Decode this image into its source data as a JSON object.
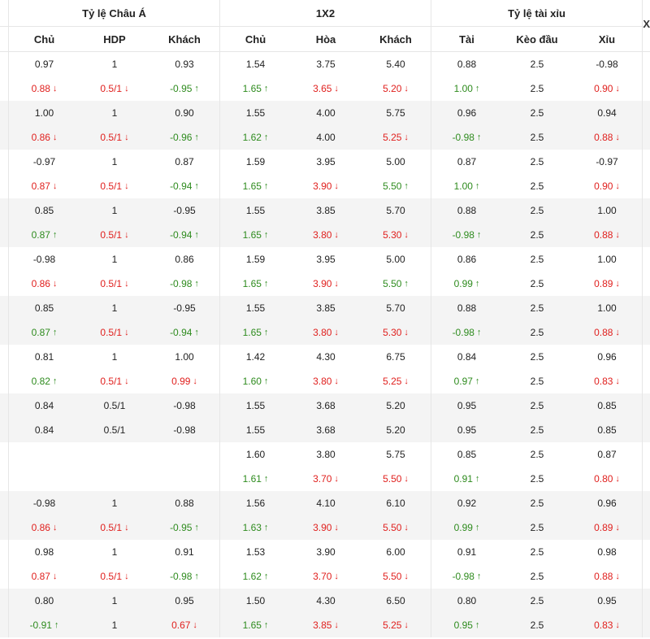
{
  "headers": {
    "asia": "Tỷ lệ Châu Á",
    "x12": "1X2",
    "ou": "Tỷ lệ tài xỉu",
    "close_glyph": "X"
  },
  "subheaders": {
    "asia": [
      "Chủ",
      "HDP",
      "Khách"
    ],
    "x12": [
      "Chủ",
      "Hòa",
      "Khách"
    ],
    "ou": [
      "Tài",
      "Kèo đầu",
      "Xỉu"
    ]
  },
  "colors": {
    "up": "#2e8b1e",
    "down": "#e0201e",
    "alt_row": "#f4f4f4"
  },
  "rows": [
    {
      "a": [
        [
          "0.97",
          ""
        ],
        [
          "1",
          ""
        ],
        [
          "0.93",
          ""
        ]
      ],
      "b": [
        [
          "1.54",
          ""
        ],
        [
          "3.75",
          ""
        ],
        [
          "5.40",
          ""
        ]
      ],
      "c": [
        [
          "0.88",
          ""
        ],
        [
          "2.5",
          ""
        ],
        [
          "-0.98",
          ""
        ]
      ]
    },
    {
      "a": [
        [
          "0.88",
          "down"
        ],
        [
          "0.5/1",
          "down"
        ],
        [
          "-0.95",
          "up"
        ]
      ],
      "b": [
        [
          "1.65",
          "up"
        ],
        [
          "3.65",
          "down"
        ],
        [
          "5.20",
          "down"
        ]
      ],
      "c": [
        [
          "1.00",
          "up"
        ],
        [
          "2.5",
          ""
        ],
        [
          "0.90",
          "down"
        ]
      ]
    },
    {
      "a": [
        [
          "1.00",
          ""
        ],
        [
          "1",
          ""
        ],
        [
          "0.90",
          ""
        ]
      ],
      "b": [
        [
          "1.55",
          ""
        ],
        [
          "4.00",
          ""
        ],
        [
          "5.75",
          ""
        ]
      ],
      "c": [
        [
          "0.96",
          ""
        ],
        [
          "2.5",
          ""
        ],
        [
          "0.94",
          ""
        ]
      ]
    },
    {
      "a": [
        [
          "0.86",
          "down"
        ],
        [
          "0.5/1",
          "down"
        ],
        [
          "-0.96",
          "up"
        ]
      ],
      "b": [
        [
          "1.62",
          "up"
        ],
        [
          "4.00",
          ""
        ],
        [
          "5.25",
          "down"
        ]
      ],
      "c": [
        [
          "-0.98",
          "up"
        ],
        [
          "2.5",
          ""
        ],
        [
          "0.88",
          "down"
        ]
      ]
    },
    {
      "a": [
        [
          "-0.97",
          ""
        ],
        [
          "1",
          ""
        ],
        [
          "0.87",
          ""
        ]
      ],
      "b": [
        [
          "1.59",
          ""
        ],
        [
          "3.95",
          ""
        ],
        [
          "5.00",
          ""
        ]
      ],
      "c": [
        [
          "0.87",
          ""
        ],
        [
          "2.5",
          ""
        ],
        [
          "-0.97",
          ""
        ]
      ]
    },
    {
      "a": [
        [
          "0.87",
          "down"
        ],
        [
          "0.5/1",
          "down"
        ],
        [
          "-0.94",
          "up"
        ]
      ],
      "b": [
        [
          "1.65",
          "up"
        ],
        [
          "3.90",
          "down"
        ],
        [
          "5.50",
          "up"
        ]
      ],
      "c": [
        [
          "1.00",
          "up"
        ],
        [
          "2.5",
          ""
        ],
        [
          "0.90",
          "down"
        ]
      ]
    },
    {
      "a": [
        [
          "0.85",
          ""
        ],
        [
          "1",
          ""
        ],
        [
          "-0.95",
          ""
        ]
      ],
      "b": [
        [
          "1.55",
          ""
        ],
        [
          "3.85",
          ""
        ],
        [
          "5.70",
          ""
        ]
      ],
      "c": [
        [
          "0.88",
          ""
        ],
        [
          "2.5",
          ""
        ],
        [
          "1.00",
          ""
        ]
      ]
    },
    {
      "a": [
        [
          "0.87",
          "up"
        ],
        [
          "0.5/1",
          "down"
        ],
        [
          "-0.94",
          "up"
        ]
      ],
      "b": [
        [
          "1.65",
          "up"
        ],
        [
          "3.80",
          "down"
        ],
        [
          "5.30",
          "down"
        ]
      ],
      "c": [
        [
          "-0.98",
          "up"
        ],
        [
          "2.5",
          ""
        ],
        [
          "0.88",
          "down"
        ]
      ]
    },
    {
      "a": [
        [
          "-0.98",
          ""
        ],
        [
          "1",
          ""
        ],
        [
          "0.86",
          ""
        ]
      ],
      "b": [
        [
          "1.59",
          ""
        ],
        [
          "3.95",
          ""
        ],
        [
          "5.00",
          ""
        ]
      ],
      "c": [
        [
          "0.86",
          ""
        ],
        [
          "2.5",
          ""
        ],
        [
          "1.00",
          ""
        ]
      ]
    },
    {
      "a": [
        [
          "0.86",
          "down"
        ],
        [
          "0.5/1",
          "down"
        ],
        [
          "-0.98",
          "up"
        ]
      ],
      "b": [
        [
          "1.65",
          "up"
        ],
        [
          "3.90",
          "down"
        ],
        [
          "5.50",
          "up"
        ]
      ],
      "c": [
        [
          "0.99",
          "up"
        ],
        [
          "2.5",
          ""
        ],
        [
          "0.89",
          "down"
        ]
      ]
    },
    {
      "a": [
        [
          "0.85",
          ""
        ],
        [
          "1",
          ""
        ],
        [
          "-0.95",
          ""
        ]
      ],
      "b": [
        [
          "1.55",
          ""
        ],
        [
          "3.85",
          ""
        ],
        [
          "5.70",
          ""
        ]
      ],
      "c": [
        [
          "0.88",
          ""
        ],
        [
          "2.5",
          ""
        ],
        [
          "1.00",
          ""
        ]
      ]
    },
    {
      "a": [
        [
          "0.87",
          "up"
        ],
        [
          "0.5/1",
          "down"
        ],
        [
          "-0.94",
          "up"
        ]
      ],
      "b": [
        [
          "1.65",
          "up"
        ],
        [
          "3.80",
          "down"
        ],
        [
          "5.30",
          "down"
        ]
      ],
      "c": [
        [
          "-0.98",
          "up"
        ],
        [
          "2.5",
          ""
        ],
        [
          "0.88",
          "down"
        ]
      ]
    },
    {
      "a": [
        [
          "0.81",
          ""
        ],
        [
          "1",
          ""
        ],
        [
          "1.00",
          ""
        ]
      ],
      "b": [
        [
          "1.42",
          ""
        ],
        [
          "4.30",
          ""
        ],
        [
          "6.75",
          ""
        ]
      ],
      "c": [
        [
          "0.84",
          ""
        ],
        [
          "2.5",
          ""
        ],
        [
          "0.96",
          ""
        ]
      ]
    },
    {
      "a": [
        [
          "0.82",
          "up"
        ],
        [
          "0.5/1",
          "down"
        ],
        [
          "0.99",
          "down"
        ]
      ],
      "b": [
        [
          "1.60",
          "up"
        ],
        [
          "3.80",
          "down"
        ],
        [
          "5.25",
          "down"
        ]
      ],
      "c": [
        [
          "0.97",
          "up"
        ],
        [
          "2.5",
          ""
        ],
        [
          "0.83",
          "down"
        ]
      ]
    },
    {
      "a": [
        [
          "0.84",
          ""
        ],
        [
          "0.5/1",
          ""
        ],
        [
          "-0.98",
          ""
        ]
      ],
      "b": [
        [
          "1.55",
          ""
        ],
        [
          "3.68",
          ""
        ],
        [
          "5.20",
          ""
        ]
      ],
      "c": [
        [
          "0.95",
          ""
        ],
        [
          "2.5",
          ""
        ],
        [
          "0.85",
          ""
        ]
      ]
    },
    {
      "a": [
        [
          "0.84",
          ""
        ],
        [
          "0.5/1",
          ""
        ],
        [
          "-0.98",
          ""
        ]
      ],
      "b": [
        [
          "1.55",
          ""
        ],
        [
          "3.68",
          ""
        ],
        [
          "5.20",
          ""
        ]
      ],
      "c": [
        [
          "0.95",
          ""
        ],
        [
          "2.5",
          ""
        ],
        [
          "0.85",
          ""
        ]
      ]
    },
    {
      "a": [
        [
          "",
          ""
        ],
        [
          "",
          ""
        ],
        [
          "",
          ""
        ]
      ],
      "b": [
        [
          "1.60",
          ""
        ],
        [
          "3.80",
          ""
        ],
        [
          "5.75",
          ""
        ]
      ],
      "c": [
        [
          "0.85",
          ""
        ],
        [
          "2.5",
          ""
        ],
        [
          "0.87",
          ""
        ]
      ]
    },
    {
      "a": [
        [
          "",
          ""
        ],
        [
          "",
          ""
        ],
        [
          "",
          ""
        ]
      ],
      "b": [
        [
          "1.61",
          "up"
        ],
        [
          "3.70",
          "down"
        ],
        [
          "5.50",
          "down"
        ]
      ],
      "c": [
        [
          "0.91",
          "up"
        ],
        [
          "2.5",
          ""
        ],
        [
          "0.80",
          "down"
        ]
      ]
    },
    {
      "a": [
        [
          "-0.98",
          ""
        ],
        [
          "1",
          ""
        ],
        [
          "0.88",
          ""
        ]
      ],
      "b": [
        [
          "1.56",
          ""
        ],
        [
          "4.10",
          ""
        ],
        [
          "6.10",
          ""
        ]
      ],
      "c": [
        [
          "0.92",
          ""
        ],
        [
          "2.5",
          ""
        ],
        [
          "0.96",
          ""
        ]
      ]
    },
    {
      "a": [
        [
          "0.86",
          "down"
        ],
        [
          "0.5/1",
          "down"
        ],
        [
          "-0.95",
          "up"
        ]
      ],
      "b": [
        [
          "1.63",
          "up"
        ],
        [
          "3.90",
          "down"
        ],
        [
          "5.50",
          "down"
        ]
      ],
      "c": [
        [
          "0.99",
          "up"
        ],
        [
          "2.5",
          ""
        ],
        [
          "0.89",
          "down"
        ]
      ]
    },
    {
      "a": [
        [
          "0.98",
          ""
        ],
        [
          "1",
          ""
        ],
        [
          "0.91",
          ""
        ]
      ],
      "b": [
        [
          "1.53",
          ""
        ],
        [
          "3.90",
          ""
        ],
        [
          "6.00",
          ""
        ]
      ],
      "c": [
        [
          "0.91",
          ""
        ],
        [
          "2.5",
          ""
        ],
        [
          "0.98",
          ""
        ]
      ]
    },
    {
      "a": [
        [
          "0.87",
          "down"
        ],
        [
          "0.5/1",
          "down"
        ],
        [
          "-0.98",
          "up"
        ]
      ],
      "b": [
        [
          "1.62",
          "up"
        ],
        [
          "3.70",
          "down"
        ],
        [
          "5.50",
          "down"
        ]
      ],
      "c": [
        [
          "-0.98",
          "up"
        ],
        [
          "2.5",
          ""
        ],
        [
          "0.88",
          "down"
        ]
      ]
    },
    {
      "a": [
        [
          "0.80",
          ""
        ],
        [
          "1",
          ""
        ],
        [
          "0.95",
          ""
        ]
      ],
      "b": [
        [
          "1.50",
          ""
        ],
        [
          "4.30",
          ""
        ],
        [
          "6.50",
          ""
        ]
      ],
      "c": [
        [
          "0.80",
          ""
        ],
        [
          "2.5",
          ""
        ],
        [
          "0.95",
          ""
        ]
      ]
    },
    {
      "a": [
        [
          "-0.91",
          "up"
        ],
        [
          "1",
          ""
        ],
        [
          "0.67",
          "down"
        ]
      ],
      "b": [
        [
          "1.65",
          "up"
        ],
        [
          "3.85",
          "down"
        ],
        [
          "5.25",
          "down"
        ]
      ],
      "c": [
        [
          "0.95",
          "up"
        ],
        [
          "2.5",
          ""
        ],
        [
          "0.83",
          "down"
        ]
      ]
    }
  ]
}
